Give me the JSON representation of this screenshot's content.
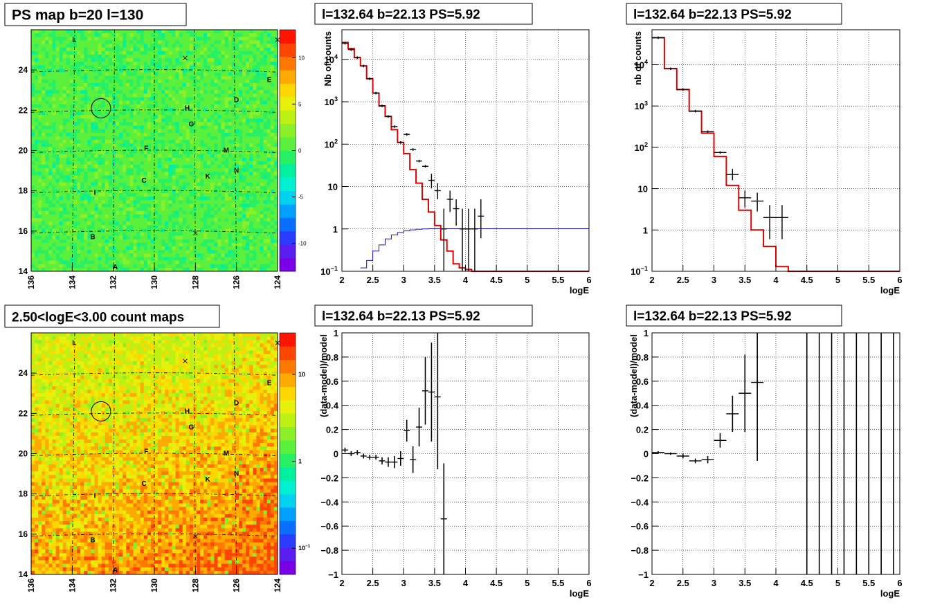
{
  "panels": [
    {
      "title": "PS map b=20 l=130",
      "kind": "map",
      "colorscale": "linear",
      "zrange": [
        -13,
        13
      ],
      "zticks": [
        -10,
        -5,
        0,
        5,
        10
      ],
      "xticks": [
        "136",
        "134",
        "132",
        "130",
        "128",
        "126",
        "124"
      ],
      "yticks": [
        "14",
        "16",
        "18",
        "20",
        "22",
        "24"
      ],
      "xrange": [
        136,
        124
      ],
      "yrange": [
        14,
        26
      ],
      "base_color": "#3ce63c",
      "labels": [
        {
          "t": "L",
          "l": 133.9,
          "b": 25.4
        },
        {
          "t": "E",
          "l": 124.4,
          "b": 23.4
        },
        {
          "t": "D",
          "l": 126.0,
          "b": 22.4
        },
        {
          "t": "H",
          "l": 128.4,
          "b": 22.0
        },
        {
          "t": "G",
          "l": 128.2,
          "b": 21.2
        },
        {
          "t": "F",
          "l": 130.4,
          "b": 20.0
        },
        {
          "t": "M",
          "l": 126.5,
          "b": 19.9
        },
        {
          "t": "N",
          "l": 126.0,
          "b": 18.9
        },
        {
          "t": "K",
          "l": 127.4,
          "b": 18.6
        },
        {
          "t": "C",
          "l": 130.5,
          "b": 18.4
        },
        {
          "t": "I",
          "l": 132.9,
          "b": 17.8
        },
        {
          "t": "B",
          "l": 133.0,
          "b": 15.6
        },
        {
          "t": "A",
          "l": 131.9,
          "b": 14.1
        }
      ],
      "crosses": [
        {
          "l": 128.5,
          "b": 24.6
        },
        {
          "l": 124.0,
          "b": 25.5
        },
        {
          "l": 128.0,
          "b": 15.9
        }
      ],
      "circle": {
        "l": 132.6,
        "b": 22.1
      }
    },
    {
      "title": "l=132.64 b=22.13 PS=5.92",
      "kind": "hist",
      "scale": "log",
      "xlabel": "logE",
      "ylabel": "Nb of counts",
      "xlim": [
        2,
        6
      ],
      "ylim": [
        0.1,
        50000
      ],
      "xticks": [
        "2",
        "2.5",
        "3",
        "3.5",
        "4",
        "4.5",
        "5",
        "5.5",
        "6"
      ],
      "yticks": [
        {
          "v": 0.1,
          "base": "10",
          "exp": "−1"
        },
        {
          "v": 1,
          "base": "1",
          "exp": ""
        },
        {
          "v": 10,
          "base": "10",
          "exp": ""
        },
        {
          "v": 100,
          "base": "10",
          "exp": "2"
        },
        {
          "v": 1000,
          "base": "10",
          "exp": "3"
        },
        {
          "v": 10000,
          "base": "10",
          "exp": "4"
        }
      ],
      "model_line": {
        "edges": [
          2.0,
          2.1,
          2.2,
          2.3,
          2.4,
          2.5,
          2.6,
          2.7,
          2.8,
          2.9,
          3.0,
          3.1,
          3.2,
          3.3,
          3.4,
          3.5,
          3.6,
          3.7,
          3.8,
          3.9,
          4.0,
          4.1,
          4.2,
          6.0
        ],
        "values": [
          25000,
          18000,
          11000,
          7000,
          3500,
          1600,
          800,
          450,
          220,
          110,
          60,
          25,
          12,
          5,
          2.5,
          1.2,
          0.55,
          0.3,
          0.15,
          0.12,
          0.11,
          0.1,
          0.1
        ]
      },
      "psf_line": {
        "edges": [
          2.3,
          2.4,
          2.5,
          2.6,
          2.7,
          2.8,
          2.9,
          3.0,
          3.1,
          3.2,
          3.3,
          3.4,
          3.5,
          3.6,
          3.7,
          3.8,
          3.9,
          4.0,
          6.0
        ],
        "values": [
          0.12,
          0.18,
          0.3,
          0.42,
          0.58,
          0.72,
          0.82,
          0.9,
          0.95,
          0.98,
          1.0,
          1.01,
          1.01,
          1.01,
          1.01,
          1.01,
          1.01,
          1.01
        ]
      },
      "points": [
        {
          "x": 2.05,
          "y": 24000,
          "ex": 0.05
        },
        {
          "x": 2.15,
          "y": 17000,
          "ex": 0.05
        },
        {
          "x": 2.25,
          "y": 11000,
          "ex": 0.05
        },
        {
          "x": 2.35,
          "y": 7000,
          "ex": 0.05
        },
        {
          "x": 2.45,
          "y": 3500,
          "ex": 0.05
        },
        {
          "x": 2.55,
          "y": 1600,
          "ex": 0.05
        },
        {
          "x": 2.65,
          "y": 800,
          "ex": 0.05
        },
        {
          "x": 2.75,
          "y": 450,
          "ex": 0.05
        },
        {
          "x": 2.85,
          "y": 260,
          "ex": 0.05
        },
        {
          "x": 2.95,
          "y": 110,
          "ex": 0.05
        },
        {
          "x": 3.05,
          "y": 170,
          "ex": 0.05
        },
        {
          "x": 3.15,
          "y": 75,
          "ex": 0.05
        },
        {
          "x": 3.25,
          "y": 40,
          "ex": 0.05
        },
        {
          "x": 3.35,
          "y": 30,
          "ex": 0.05
        },
        {
          "x": 3.45,
          "y": 14,
          "ex": 0.05,
          "eyl": 9,
          "eyh": 20
        },
        {
          "x": 3.55,
          "y": 8,
          "ex": 0.05,
          "eyl": 5,
          "eyh": 12
        },
        {
          "x": 3.65,
          "y": 1,
          "ex": 0.05,
          "eyl": 0.1,
          "eyh": 3
        },
        {
          "x": 3.75,
          "y": 5,
          "ex": 0.05,
          "eyl": 2.5,
          "eyh": 8
        },
        {
          "x": 3.85,
          "y": 3,
          "ex": 0.05,
          "eyl": 1.2,
          "eyh": 5
        },
        {
          "x": 3.95,
          "y": 1,
          "ex": 0.05,
          "eyl": 0.1,
          "eyh": 3
        },
        {
          "x": 4.05,
          "y": 1,
          "ex": 0.05,
          "eyl": 0.1,
          "eyh": 3
        },
        {
          "x": 4.15,
          "y": 1,
          "ex": 0.05,
          "eyl": 0.1,
          "eyh": 3
        },
        {
          "x": 4.25,
          "y": 2,
          "ex": 0.05,
          "eyl": 0.6,
          "eyh": 5
        }
      ]
    },
    {
      "title": "l=132.64 b=22.13 PS=5.92",
      "kind": "hist",
      "scale": "log",
      "xlabel": "logE",
      "ylabel": "nb of counts",
      "xlim": [
        2,
        6
      ],
      "ylim": [
        0.1,
        70000
      ],
      "xticks": [
        "2",
        "2.5",
        "3",
        "3.5",
        "4",
        "4.5",
        "5",
        "5.5",
        "6"
      ],
      "yticks": [
        {
          "v": 0.1,
          "base": "10",
          "exp": "−1"
        },
        {
          "v": 1,
          "base": "1",
          "exp": ""
        },
        {
          "v": 10,
          "base": "10",
          "exp": ""
        },
        {
          "v": 100,
          "base": "10",
          "exp": "2"
        },
        {
          "v": 1000,
          "base": "10",
          "exp": "3"
        },
        {
          "v": 10000,
          "base": "10",
          "exp": "4"
        }
      ],
      "model_line": {
        "edges": [
          2.0,
          2.2,
          2.4,
          2.6,
          2.8,
          3.0,
          3.2,
          3.4,
          3.6,
          3.8,
          4.0,
          4.2,
          4.4,
          6.0
        ],
        "values": [
          45000,
          8000,
          2500,
          750,
          220,
          60,
          12,
          3,
          1,
          0.4,
          0.13,
          0.1,
          0.1
        ]
      },
      "points": [
        {
          "x": 2.1,
          "y": 45000,
          "ex": 0.1
        },
        {
          "x": 2.3,
          "y": 8000,
          "ex": 0.1
        },
        {
          "x": 2.5,
          "y": 2500,
          "ex": 0.1
        },
        {
          "x": 2.7,
          "y": 750,
          "ex": 0.1
        },
        {
          "x": 2.9,
          "y": 240,
          "ex": 0.1
        },
        {
          "x": 3.1,
          "y": 75,
          "ex": 0.1
        },
        {
          "x": 3.3,
          "y": 22,
          "ex": 0.1,
          "eyl": 16,
          "eyh": 30
        },
        {
          "x": 3.5,
          "y": 6,
          "ex": 0.1,
          "eyl": 3.5,
          "eyh": 9
        },
        {
          "x": 3.7,
          "y": 5,
          "ex": 0.1,
          "eyl": 2.8,
          "eyh": 8
        },
        {
          "x": 3.9,
          "y": 2,
          "ex": 0.1,
          "eyl": 0.6,
          "eyh": 4
        },
        {
          "x": 4.1,
          "y": 2,
          "ex": 0.1,
          "eyl": 0.6,
          "eyh": 4
        }
      ]
    },
    {
      "title": "2.50<logE<3.00 count maps",
      "kind": "map",
      "colorscale": "log",
      "zrange": [
        0.05,
        30
      ],
      "zticks": [
        {
          "v": 0.1,
          "base": "10",
          "exp": "−1"
        },
        {
          "v": 1,
          "base": "1",
          "exp": ""
        },
        {
          "v": 10,
          "base": "10",
          "exp": ""
        }
      ],
      "xticks": [
        "136",
        "134",
        "132",
        "130",
        "128",
        "126",
        "124"
      ],
      "yticks": [
        "14",
        "16",
        "18",
        "20",
        "22",
        "24"
      ],
      "xrange": [
        136,
        124
      ],
      "yrange": [
        14,
        26
      ],
      "base_color": "#f2c020",
      "labels": [
        {
          "t": "L",
          "l": 133.9,
          "b": 25.4
        },
        {
          "t": "E",
          "l": 124.4,
          "b": 23.4
        },
        {
          "t": "D",
          "l": 126.0,
          "b": 22.4
        },
        {
          "t": "H",
          "l": 128.4,
          "b": 22.0
        },
        {
          "t": "G",
          "l": 128.2,
          "b": 21.2
        },
        {
          "t": "F",
          "l": 130.4,
          "b": 20.0
        },
        {
          "t": "M",
          "l": 126.5,
          "b": 19.9
        },
        {
          "t": "N",
          "l": 126.0,
          "b": 18.9
        },
        {
          "t": "K",
          "l": 127.4,
          "b": 18.6
        },
        {
          "t": "C",
          "l": 130.5,
          "b": 18.4
        },
        {
          "t": "I",
          "l": 132.9,
          "b": 17.8
        },
        {
          "t": "B",
          "l": 133.0,
          "b": 15.6
        },
        {
          "t": "A",
          "l": 131.9,
          "b": 14.1
        }
      ],
      "crosses": [
        {
          "l": 128.5,
          "b": 24.6
        },
        {
          "l": 124.0,
          "b": 25.5
        },
        {
          "l": 128.0,
          "b": 15.9
        }
      ],
      "circle": {
        "l": 132.6,
        "b": 22.1
      }
    },
    {
      "title": "l=132.64 b=22.13 PS=5.92",
      "kind": "ratio",
      "xlabel": "logE",
      "ylabel": "(data-model)/model",
      "xlim": [
        2,
        6
      ],
      "ylim": [
        -1,
        1
      ],
      "xticks": [
        "2",
        "2.5",
        "3",
        "3.5",
        "4",
        "4.5",
        "5",
        "5.5",
        "6"
      ],
      "yticks": [
        "−1",
        "−0.8",
        "−0.6",
        "−0.4",
        "−0.2",
        "0",
        "0.2",
        "0.4",
        "0.6",
        "0.8",
        "1"
      ],
      "points": [
        {
          "x": 2.05,
          "y": 0.03,
          "ex": 0.05,
          "ey": 0.02
        },
        {
          "x": 2.15,
          "y": 0.0,
          "ex": 0.05,
          "ey": 0.02
        },
        {
          "x": 2.25,
          "y": 0.01,
          "ex": 0.05,
          "ey": 0.02
        },
        {
          "x": 2.35,
          "y": -0.02,
          "ex": 0.05,
          "ey": 0.02
        },
        {
          "x": 2.45,
          "y": -0.03,
          "ex": 0.05,
          "ey": 0.02
        },
        {
          "x": 2.55,
          "y": -0.03,
          "ex": 0.05,
          "ey": 0.02
        },
        {
          "x": 2.65,
          "y": -0.06,
          "ex": 0.05,
          "ey": 0.03
        },
        {
          "x": 2.75,
          "y": -0.07,
          "ex": 0.05,
          "ey": 0.04
        },
        {
          "x": 2.85,
          "y": -0.07,
          "ex": 0.05,
          "ey": 0.05
        },
        {
          "x": 2.95,
          "y": -0.04,
          "ex": 0.05,
          "ey": 0.06
        },
        {
          "x": 3.05,
          "y": 0.19,
          "ex": 0.05,
          "ey": 0.09
        },
        {
          "x": 3.15,
          "y": -0.05,
          "ex": 0.05,
          "ey": 0.11
        },
        {
          "x": 3.25,
          "y": 0.22,
          "ex": 0.05,
          "ey": 0.16
        },
        {
          "x": 3.35,
          "y": 0.52,
          "ex": 0.05,
          "ey": 0.28
        },
        {
          "x": 3.45,
          "y": 0.51,
          "ex": 0.05,
          "ey": 0.41
        },
        {
          "x": 3.55,
          "y": 0.47,
          "ex": 0.05,
          "ey": 0.6
        },
        {
          "x": 3.65,
          "y": -0.54,
          "ex": 0.05,
          "ey": 0.46
        }
      ]
    },
    {
      "title": "l=132.64 b=22.13 PS=5.92",
      "kind": "ratio",
      "xlabel": "logE",
      "ylabel": "(data-model)/model",
      "xlim": [
        2,
        6
      ],
      "ylim": [
        -1,
        1
      ],
      "xticks": [
        "2",
        "2.5",
        "3",
        "3.5",
        "4",
        "4.5",
        "5",
        "5.5",
        "6"
      ],
      "yticks": [
        "−1",
        "−0.8",
        "−0.6",
        "−0.4",
        "−0.2",
        "0",
        "0.2",
        "0.4",
        "0.6",
        "0.8",
        "1"
      ],
      "points": [
        {
          "x": 2.1,
          "y": 0.01,
          "ex": 0.1,
          "ey": 0.01
        },
        {
          "x": 2.3,
          "y": 0.0,
          "ex": 0.1,
          "ey": 0.01
        },
        {
          "x": 2.5,
          "y": -0.02,
          "ex": 0.1,
          "ey": 0.02
        },
        {
          "x": 2.7,
          "y": -0.06,
          "ex": 0.1,
          "ey": 0.02
        },
        {
          "x": 2.9,
          "y": -0.05,
          "ex": 0.1,
          "ey": 0.03
        },
        {
          "x": 3.1,
          "y": 0.11,
          "ex": 0.1,
          "ey": 0.06
        },
        {
          "x": 3.3,
          "y": 0.33,
          "ex": 0.1,
          "ey": 0.15
        },
        {
          "x": 3.5,
          "y": 0.5,
          "ex": 0.1,
          "ey": 0.32
        },
        {
          "x": 3.7,
          "y": 0.59,
          "ex": 0.1,
          "ey": 0.65
        },
        {
          "x": 4.5,
          "y": 0.0,
          "ex": 0.0,
          "ey": 1.2
        },
        {
          "x": 4.7,
          "y": 0.0,
          "ex": 0.0,
          "ey": 1.2
        },
        {
          "x": 4.9,
          "y": 0.0,
          "ex": 0.0,
          "ey": 1.2
        },
        {
          "x": 5.1,
          "y": 0.0,
          "ex": 0.0,
          "ey": 1.2
        },
        {
          "x": 5.3,
          "y": 0.0,
          "ex": 0.0,
          "ey": 1.2
        },
        {
          "x": 5.5,
          "y": 0.0,
          "ex": 0.0,
          "ey": 1.2
        },
        {
          "x": 5.7,
          "y": 0.0,
          "ex": 0.0,
          "ey": 1.2
        },
        {
          "x": 5.9,
          "y": 0.0,
          "ex": 0.0,
          "ey": 1.2
        }
      ]
    }
  ],
  "chart_data": [
    {
      "type": "heatmap",
      "title": "PS map b=20 l=130",
      "xlim": [
        136,
        124
      ],
      "ylim": [
        14,
        26
      ],
      "zlim": [
        -13,
        13
      ],
      "colorbar_ticks": [
        -10,
        -5,
        0,
        5,
        10
      ],
      "grid": true
    },
    {
      "type": "line",
      "title": "l=132.64 b=22.13 PS=5.92",
      "xlabel": "logE",
      "ylabel": "Nb of counts",
      "yscale": "log",
      "xlim": [
        2,
        6
      ],
      "ylim": [
        0.1,
        50000
      ],
      "grid": true
    },
    {
      "type": "line",
      "title": "l=132.64 b=22.13 PS=5.92",
      "xlabel": "logE",
      "ylabel": "nb of counts",
      "yscale": "log",
      "xlim": [
        2,
        6
      ],
      "ylim": [
        0.1,
        70000
      ],
      "grid": true
    },
    {
      "type": "heatmap",
      "title": "2.50<logE<3.00 count maps",
      "xlim": [
        136,
        124
      ],
      "ylim": [
        14,
        26
      ],
      "zscale": "log",
      "grid": true
    },
    {
      "type": "scatter",
      "title": "l=132.64 b=22.13 PS=5.92",
      "xlabel": "logE",
      "ylabel": "(data-model)/model",
      "xlim": [
        2,
        6
      ],
      "ylim": [
        -1,
        1
      ],
      "grid": true
    },
    {
      "type": "scatter",
      "title": "l=132.64 b=22.13 PS=5.92",
      "xlabel": "logE",
      "ylabel": "(data-model)/model",
      "xlim": [
        2,
        6
      ],
      "ylim": [
        -1,
        1
      ],
      "grid": true
    }
  ]
}
